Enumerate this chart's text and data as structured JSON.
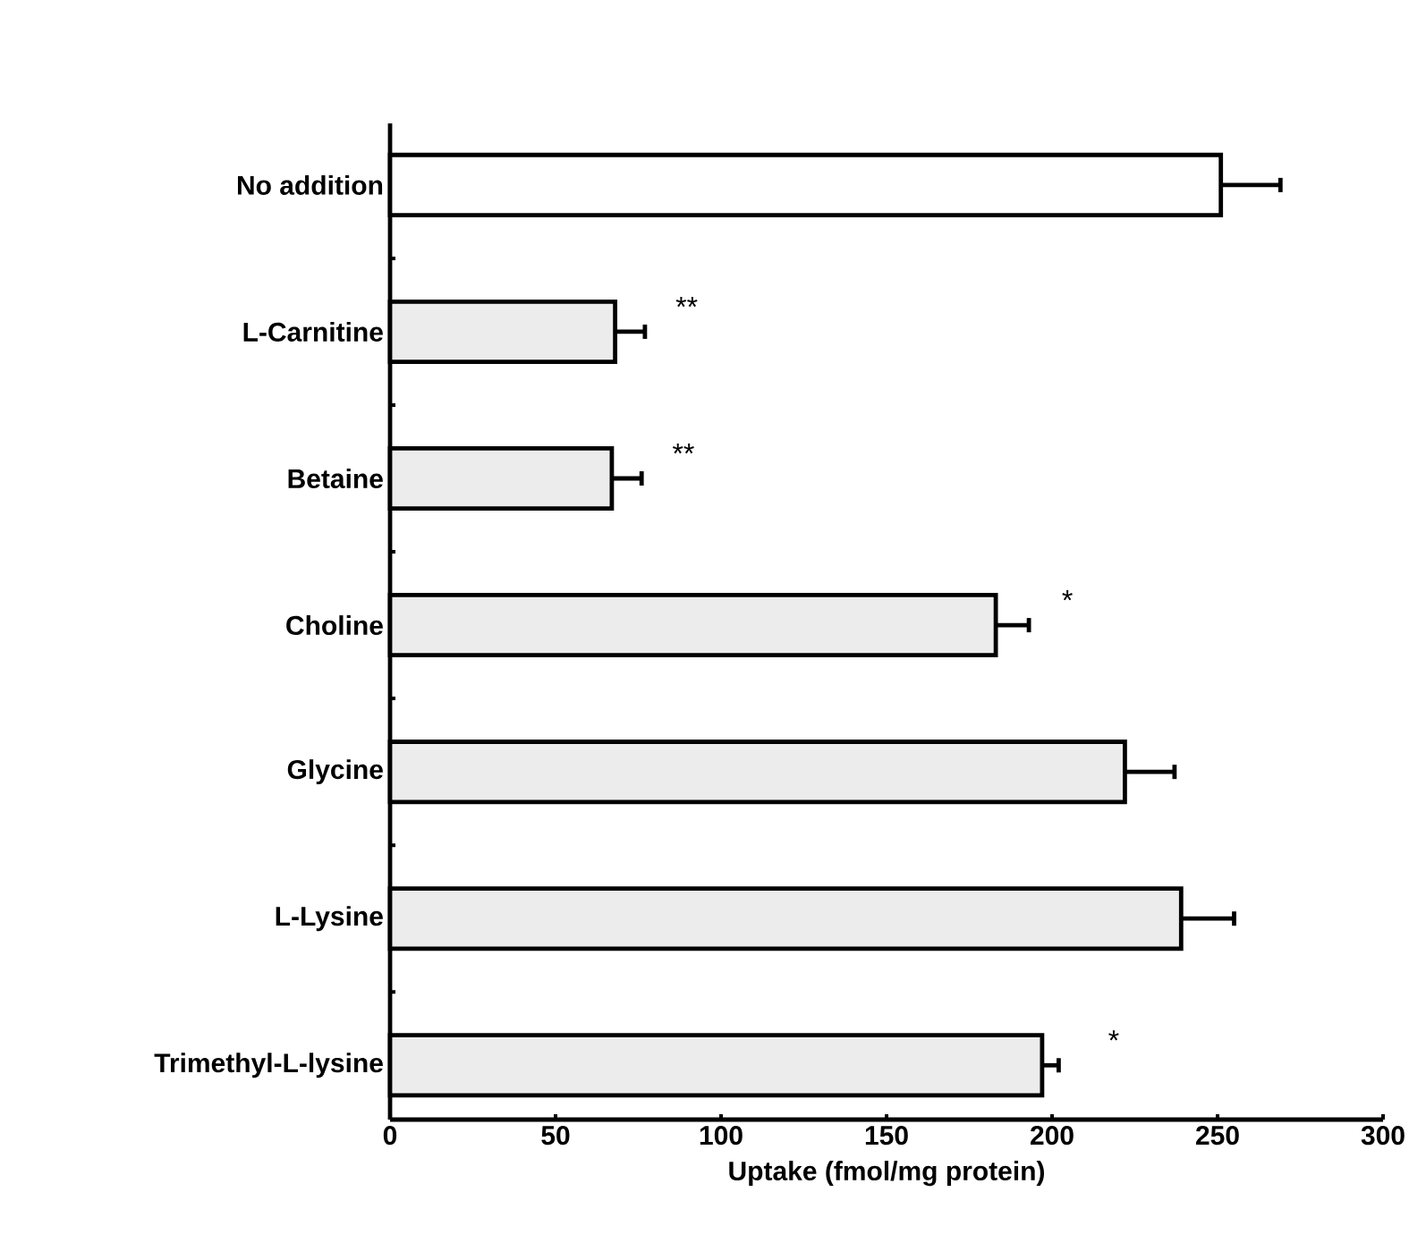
{
  "chart_data": {
    "type": "bar",
    "orientation": "horizontal",
    "categories": [
      "No addition",
      "L-Carnitine",
      "Betaine",
      "Choline",
      "Glycine",
      "L-Lysine",
      "Trimethyl-L-lysine"
    ],
    "values": [
      251,
      68,
      67,
      183,
      222,
      239,
      197
    ],
    "errors": [
      18,
      9,
      9,
      10,
      15,
      16,
      5
    ],
    "colors": [
      "#ffffff",
      "#ececec",
      "#ececec",
      "#ececec",
      "#ececec",
      "#ececec",
      "#ececec"
    ],
    "xlabel": "Uptake (fmol/mg protein)",
    "xlim": [
      0,
      300
    ],
    "xticks": [
      0,
      50,
      100,
      150,
      200,
      250,
      300
    ],
    "annotations": [
      {
        "text": "**",
        "x": 68,
        "y": "L-Carnitine"
      },
      {
        "text": "**",
        "x": 67,
        "y": "Betaine"
      },
      {
        "text": "*",
        "x": 183,
        "y": "Choline"
      },
      {
        "text": "*",
        "x": 197,
        "y": "Trimethyl-L-lysine"
      }
    ],
    "grid": false
  }
}
